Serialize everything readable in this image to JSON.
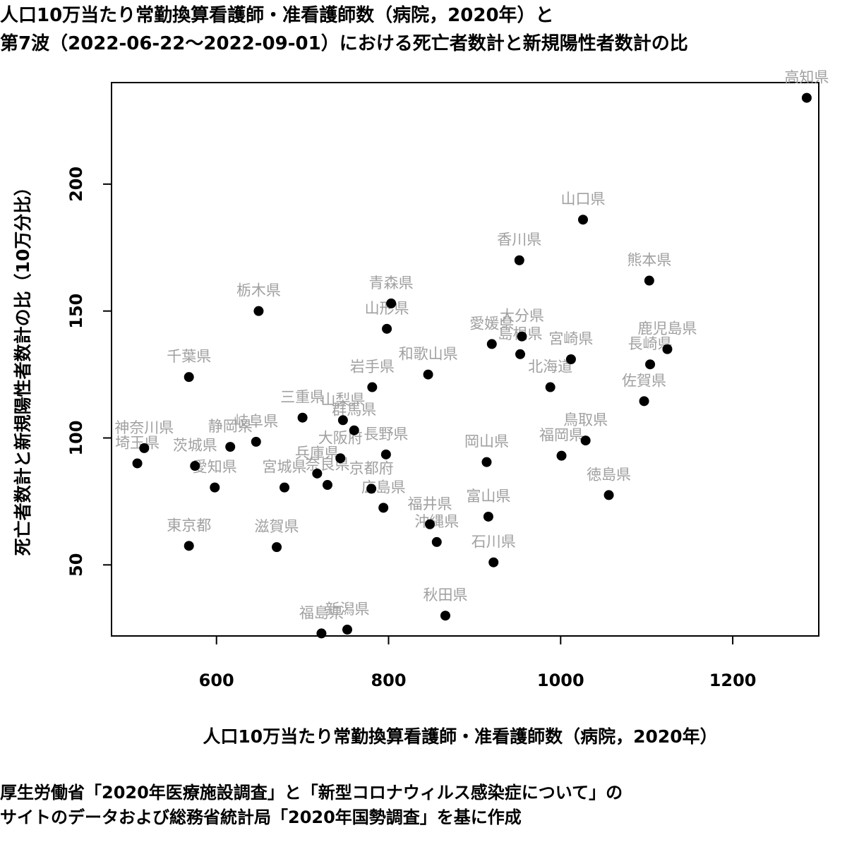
{
  "chart_data": {
    "type": "scatter",
    "title_lines": [
      "人口10万当たり常勤換算看護師・准看護師数（病院，2020年）と",
      "第7波（2022-06-22〜2022-09-01）における死亡者数計と新規陽性者数計の比"
    ],
    "xlabel": "人口10万当たり常勤換算看護師・准看護師数（病院，2020年）",
    "ylabel": "死亡者数計と新規陽性者数計の比（10万分比）",
    "xlim": [
      478,
      1300
    ],
    "ylim": [
      22,
      240
    ],
    "xticks": [
      600,
      800,
      1000,
      1200
    ],
    "yticks": [
      50,
      100,
      150,
      200
    ],
    "grid": false,
    "point_color": "#000000",
    "label_color": "#a0a0a0",
    "points": [
      {
        "label": "北海道",
        "x": 988,
        "y": 120
      },
      {
        "label": "青森県",
        "x": 803,
        "y": 153
      },
      {
        "label": "岩手県",
        "x": 781,
        "y": 120
      },
      {
        "label": "宮城県",
        "x": 679,
        "y": 80.5
      },
      {
        "label": "秋田県",
        "x": 866,
        "y": 30
      },
      {
        "label": "山形県",
        "x": 798,
        "y": 143
      },
      {
        "label": "福島県",
        "x": 722,
        "y": 23
      },
      {
        "label": "茨城県",
        "x": 575,
        "y": 89
      },
      {
        "label": "栃木県",
        "x": 649,
        "y": 150
      },
      {
        "label": "群馬県",
        "x": 760,
        "y": 103
      },
      {
        "label": "埼玉県",
        "x": 508,
        "y": 90
      },
      {
        "label": "千葉県",
        "x": 568,
        "y": 124
      },
      {
        "label": "東京都",
        "x": 568,
        "y": 57.5
      },
      {
        "label": "神奈川県",
        "x": 516,
        "y": 96
      },
      {
        "label": "新潟県",
        "x": 752,
        "y": 24.5
      },
      {
        "label": "富山県",
        "x": 916,
        "y": 69
      },
      {
        "label": "石川県",
        "x": 922,
        "y": 51
      },
      {
        "label": "福井県",
        "x": 848,
        "y": 66
      },
      {
        "label": "山梨県",
        "x": 747,
        "y": 107
      },
      {
        "label": "長野県",
        "x": 797,
        "y": 93.5
      },
      {
        "label": "岐阜県",
        "x": 646,
        "y": 98.5
      },
      {
        "label": "静岡県",
        "x": 616,
        "y": 96.5
      },
      {
        "label": "愛知県",
        "x": 598,
        "y": 80.5
      },
      {
        "label": "三重県",
        "x": 700,
        "y": 108
      },
      {
        "label": "滋賀県",
        "x": 670,
        "y": 57
      },
      {
        "label": "京都府",
        "x": 780,
        "y": 80
      },
      {
        "label": "大阪府",
        "x": 744,
        "y": 92
      },
      {
        "label": "兵庫県",
        "x": 717,
        "y": 86
      },
      {
        "label": "奈良県",
        "x": 729,
        "y": 81.5
      },
      {
        "label": "和歌山県",
        "x": 846,
        "y": 125
      },
      {
        "label": "鳥取県",
        "x": 1029,
        "y": 99
      },
      {
        "label": "島根県",
        "x": 953,
        "y": 133
      },
      {
        "label": "岡山県",
        "x": 914,
        "y": 90.5
      },
      {
        "label": "広島県",
        "x": 794,
        "y": 72.5
      },
      {
        "label": "山口県",
        "x": 1026,
        "y": 186
      },
      {
        "label": "徳島県",
        "x": 1056,
        "y": 77.5
      },
      {
        "label": "香川県",
        "x": 952,
        "y": 170
      },
      {
        "label": "愛媛県",
        "x": 920,
        "y": 137
      },
      {
        "label": "高知県",
        "x": 1286,
        "y": 234
      },
      {
        "label": "福岡県",
        "x": 1001,
        "y": 93
      },
      {
        "label": "佐賀県",
        "x": 1097,
        "y": 114.5
      },
      {
        "label": "長崎県",
        "x": 1104,
        "y": 129
      },
      {
        "label": "熊本県",
        "x": 1103,
        "y": 162
      },
      {
        "label": "大分県",
        "x": 955,
        "y": 140
      },
      {
        "label": "宮崎県",
        "x": 1012,
        "y": 131
      },
      {
        "label": "鹿児島県",
        "x": 1124,
        "y": 135
      },
      {
        "label": "沖縄県",
        "x": 856,
        "y": 59
      }
    ]
  },
  "footer_lines": [
    "厚生労働省「2020年医療施設調査」と「新型コロナウィルス感染症について」の",
    "サイトのデータおよび総務省統計局「2020年国勢調査」を基に作成"
  ]
}
